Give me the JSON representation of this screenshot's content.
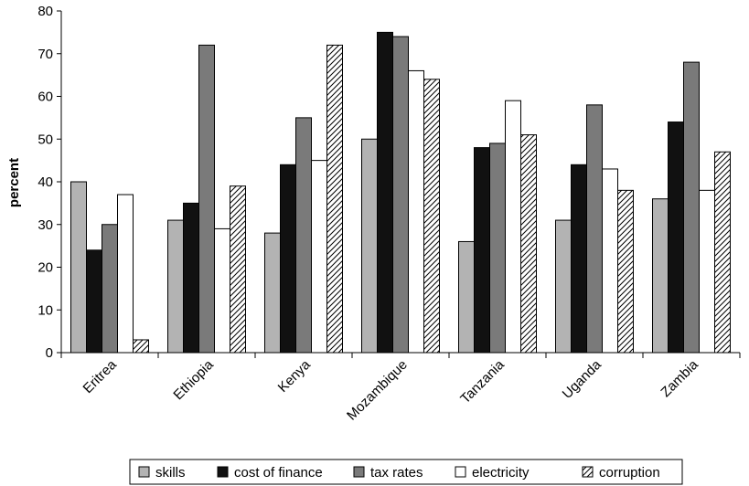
{
  "chart_data": {
    "type": "bar",
    "title": "",
    "xlabel": "",
    "ylabel": "percent",
    "ylim": [
      0,
      80
    ],
    "yticks": [
      0,
      10,
      20,
      30,
      40,
      50,
      60,
      70,
      80
    ],
    "grid": false,
    "legend_position": "bottom",
    "categories": [
      "Eritrea",
      "Ethiopia",
      "Kenya",
      "Mozambique",
      "Tanzania",
      "Uganda",
      "Zambia"
    ],
    "series": [
      {
        "name": "skills",
        "fill": "#b3b3b3",
        "pattern": "solid",
        "values": [
          40,
          31,
          28,
          50,
          26,
          31,
          36
        ]
      },
      {
        "name": "cost of finance",
        "fill": "#111111",
        "pattern": "solid",
        "values": [
          24,
          35,
          44,
          75,
          48,
          44,
          54
        ]
      },
      {
        "name": "tax rates",
        "fill": "#7a7a7a",
        "pattern": "solid",
        "values": [
          30,
          72,
          55,
          74,
          49,
          58,
          68
        ]
      },
      {
        "name": "electricity",
        "fill": "#ffffff",
        "pattern": "solid",
        "values": [
          37,
          29,
          45,
          66,
          59,
          43,
          38
        ]
      },
      {
        "name": "corruption",
        "fill": "#ffffff",
        "pattern": "hatch",
        "values": [
          3,
          39,
          72,
          64,
          51,
          38,
          47
        ]
      }
    ]
  }
}
